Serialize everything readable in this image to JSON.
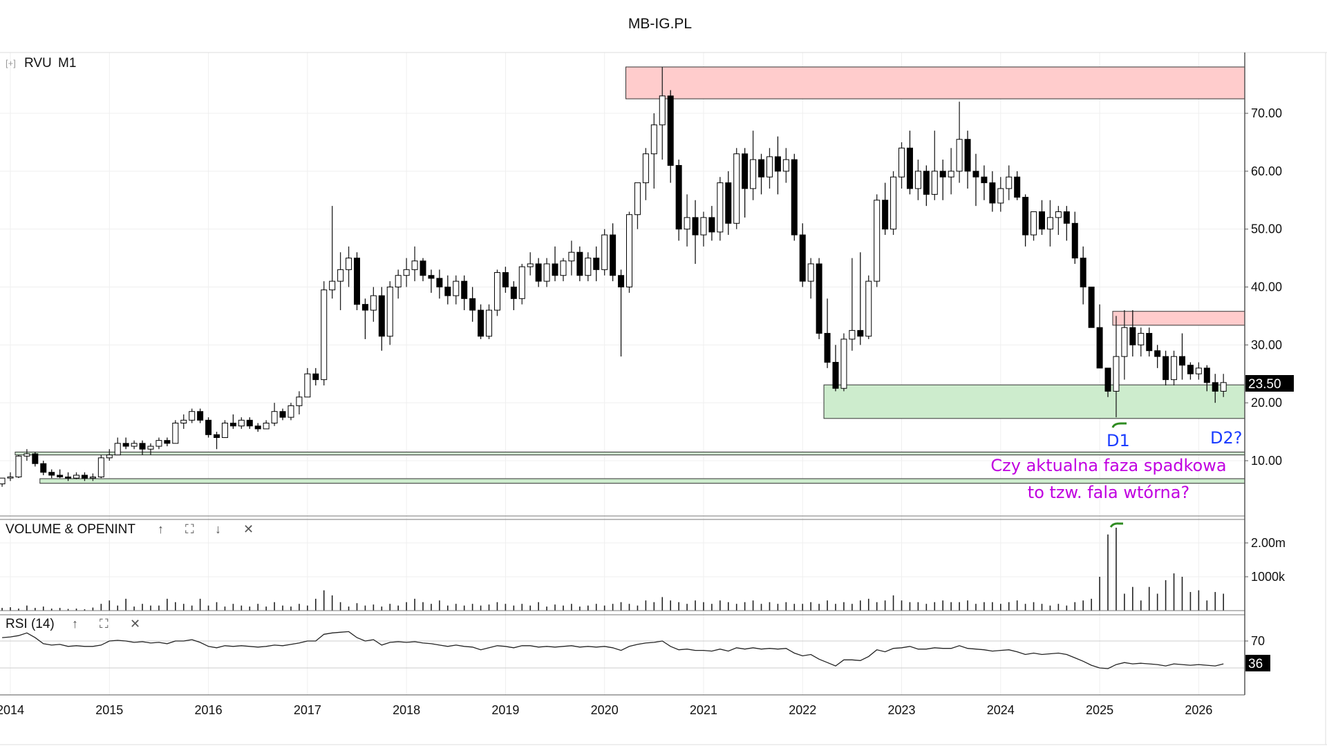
{
  "page_title": "MB-IG.PL",
  "price_panel": {
    "symbol": "RVU",
    "interval": "M1",
    "expand_icon": "[+]",
    "last_price": "23.50"
  },
  "volume_panel": {
    "title": "VOLUME & OPENINT",
    "icons": [
      "arrow-up-icon",
      "maximize-icon",
      "arrow-down-icon",
      "close-icon"
    ]
  },
  "rsi_panel": {
    "title": "RSI (14)",
    "last_value": "36",
    "icons": [
      "arrow-up-icon",
      "maximize-icon",
      "close-icon"
    ]
  },
  "annotations": {
    "d1": "D1",
    "d2": "D2?",
    "question_line1": "Czy aktualna faza spadkowa",
    "question_line2": "to tzw. fala wtórna?"
  },
  "colors": {
    "supply_zone": "#ffcccc",
    "demand_zone": "#cdeccd",
    "annotation_blue": "#1a3cff",
    "annotation_purple": "#c000e0",
    "brush_green": "#2e8b20"
  },
  "chart_data": {
    "type": "candlestick",
    "title": "MB-IG.PL",
    "start_month": "2013-12",
    "x_tick_labels": [
      "2014",
      "2015",
      "2016",
      "2017",
      "2018",
      "2019",
      "2020",
      "2021",
      "2022",
      "2023",
      "2024",
      "2025",
      "2026"
    ],
    "price_ticks": [
      "10.00",
      "20.00",
      "30.00",
      "40.00",
      "50.00",
      "60.00",
      "70.00"
    ],
    "price_tick_values": [
      10,
      20,
      30,
      40,
      50,
      60,
      70
    ],
    "ylim": [
      4,
      80
    ],
    "zones": [
      {
        "type": "supply",
        "from": "2020-04",
        "low": 72.5,
        "high": 78
      },
      {
        "type": "supply",
        "from": "2025-03",
        "low": 33.4,
        "high": 35.8
      },
      {
        "type": "demand",
        "from": "2022-04",
        "low": 17.3,
        "high": 23.1
      },
      {
        "type": "demand",
        "from": "2014-02",
        "low": 11.0,
        "high": 11.5
      },
      {
        "type": "demand",
        "from": "2014-05",
        "low": 6.1,
        "high": 6.9
      }
    ],
    "ohlc": [
      [
        6,
        7,
        5.5,
        7
      ],
      [
        7,
        8,
        6.5,
        7.2
      ],
      [
        7.2,
        11,
        7,
        10.8
      ],
      [
        10.8,
        12,
        10,
        11.2
      ],
      [
        11.2,
        11.5,
        9,
        9.5
      ],
      [
        9.5,
        10,
        7.5,
        8
      ],
      [
        8,
        8.5,
        7,
        7.5
      ],
      [
        7.5,
        8.5,
        7,
        7.2
      ],
      [
        7.2,
        8,
        6.5,
        7
      ],
      [
        7,
        8,
        6.8,
        7.5
      ],
      [
        7.5,
        8,
        6.5,
        7
      ],
      [
        7,
        7.8,
        6.5,
        7.2
      ],
      [
        7.2,
        11,
        7,
        10.5
      ],
      [
        10.5,
        12,
        10,
        11
      ],
      [
        11,
        14,
        11,
        13
      ],
      [
        13,
        14,
        12,
        12.5
      ],
      [
        12.5,
        13.5,
        12,
        13
      ],
      [
        13,
        13.5,
        11,
        12
      ],
      [
        12,
        13,
        11,
        12.5
      ],
      [
        12.5,
        14,
        12,
        13.5
      ],
      [
        13.5,
        14,
        12.5,
        13
      ],
      [
        13,
        17,
        13,
        16.5
      ],
      [
        16.5,
        18,
        15.5,
        17
      ],
      [
        17,
        19,
        16.5,
        18.5
      ],
      [
        18.5,
        19,
        16.5,
        17
      ],
      [
        17,
        17.5,
        14,
        14.5
      ],
      [
        14.5,
        15,
        12,
        14
      ],
      [
        14,
        17,
        14,
        16.5
      ],
      [
        16.5,
        18,
        15.5,
        16
      ],
      [
        16,
        17.5,
        15.5,
        17
      ],
      [
        17,
        17.5,
        15.5,
        16
      ],
      [
        16,
        16.5,
        15,
        15.5
      ],
      [
        15.5,
        17,
        15.5,
        16.5
      ],
      [
        16.5,
        20,
        16,
        18.5
      ],
      [
        18.5,
        19,
        17,
        17.5
      ],
      [
        17.5,
        20,
        17,
        19.5
      ],
      [
        19.5,
        22,
        18,
        21
      ],
      [
        21,
        26,
        21,
        25
      ],
      [
        25,
        26,
        23,
        24
      ],
      [
        24,
        41,
        23,
        39.5
      ],
      [
        39.5,
        54,
        38,
        41
      ],
      [
        41,
        46,
        36,
        43
      ],
      [
        43,
        47,
        40,
        45
      ],
      [
        45,
        46,
        36,
        37
      ],
      [
        37,
        38,
        31,
        36
      ],
      [
        36,
        40,
        34,
        38.5
      ],
      [
        38.5,
        40,
        29,
        31.5
      ],
      [
        31.5,
        41,
        30,
        40
      ],
      [
        40,
        43,
        38,
        42
      ],
      [
        42,
        45,
        40,
        43
      ],
      [
        43,
        47,
        41,
        44.5
      ],
      [
        44.5,
        45,
        41,
        42
      ],
      [
        42,
        43,
        39,
        41.5
      ],
      [
        41.5,
        43,
        38,
        40
      ],
      [
        40,
        42,
        37,
        38.5
      ],
      [
        38.5,
        42,
        37,
        41
      ],
      [
        41,
        42,
        36,
        38
      ],
      [
        38,
        40,
        34,
        36
      ],
      [
        36,
        37,
        31,
        31.5
      ],
      [
        31.5,
        37,
        31,
        36
      ],
      [
        36,
        43,
        35,
        42.5
      ],
      [
        42.5,
        43.5,
        39,
        40
      ],
      [
        40,
        41,
        36,
        38
      ],
      [
        38,
        44,
        37,
        43.5
      ],
      [
        43.5,
        46,
        42,
        44
      ],
      [
        44,
        45,
        40,
        41
      ],
      [
        41,
        45,
        40,
        44
      ],
      [
        44,
        47,
        41,
        42
      ],
      [
        42,
        45,
        41,
        44.5
      ],
      [
        44.5,
        48,
        42,
        46
      ],
      [
        46,
        47,
        41,
        42
      ],
      [
        42,
        46,
        41,
        45
      ],
      [
        45,
        47,
        41,
        43
      ],
      [
        43,
        50,
        42,
        49
      ],
      [
        49,
        51,
        41,
        42
      ],
      [
        42,
        43,
        28,
        40
      ],
      [
        40,
        53,
        39,
        52.5
      ],
      [
        52.5,
        58,
        50,
        58
      ],
      [
        58,
        64,
        55,
        63
      ],
      [
        63,
        70,
        57,
        68
      ],
      [
        68,
        78,
        62,
        73
      ],
      [
        73,
        74,
        58,
        61
      ],
      [
        61,
        62,
        48,
        50
      ],
      [
        50,
        56,
        47,
        52
      ],
      [
        52,
        55,
        44,
        49
      ],
      [
        49,
        53,
        47,
        52
      ],
      [
        52,
        54,
        48,
        49.5
      ],
      [
        49.5,
        59,
        48,
        58
      ],
      [
        58,
        60,
        49,
        51
      ],
      [
        51,
        64,
        50,
        63
      ],
      [
        63,
        64,
        52,
        57
      ],
      [
        57,
        67,
        55,
        62
      ],
      [
        62,
        63,
        56,
        59
      ],
      [
        59,
        64,
        57,
        62.5
      ],
      [
        62.5,
        66,
        56,
        60
      ],
      [
        60,
        64,
        58,
        62
      ],
      [
        62,
        63,
        48,
        49
      ],
      [
        49,
        51,
        40,
        41
      ],
      [
        41,
        45,
        38,
        44
      ],
      [
        44,
        45,
        31,
        32
      ],
      [
        32,
        38,
        26,
        27
      ],
      [
        27,
        30,
        22,
        22.5
      ],
      [
        22.5,
        32,
        22,
        31
      ],
      [
        31,
        45,
        29,
        32.5
      ],
      [
        32.5,
        46,
        30,
        31.5
      ],
      [
        31.5,
        42,
        31,
        41
      ],
      [
        41,
        56,
        40,
        55
      ],
      [
        55,
        58,
        49,
        50
      ],
      [
        50,
        60,
        49,
        59
      ],
      [
        59,
        65,
        57,
        64
      ],
      [
        64,
        67,
        56,
        57
      ],
      [
        57,
        62,
        55,
        60
      ],
      [
        60,
        61,
        54,
        56
      ],
      [
        56,
        67,
        55,
        60
      ],
      [
        60,
        62,
        55,
        59
      ],
      [
        59,
        64,
        56,
        60
      ],
      [
        60,
        72,
        58,
        65.5
      ],
      [
        65.5,
        67,
        57,
        60
      ],
      [
        60,
        63,
        54,
        59
      ],
      [
        59,
        61,
        55,
        58
      ],
      [
        58,
        60,
        53,
        54.5
      ],
      [
        54.5,
        59,
        53,
        57
      ],
      [
        57,
        61,
        55,
        59
      ],
      [
        59,
        60,
        55,
        55.5
      ],
      [
        55.5,
        56,
        47,
        49
      ],
      [
        49,
        53,
        48,
        53
      ],
      [
        53,
        55,
        49,
        50
      ],
      [
        50,
        55,
        47,
        52
      ],
      [
        52,
        54,
        49,
        53
      ],
      [
        53,
        54,
        48,
        51
      ],
      [
        51,
        53,
        44,
        45
      ],
      [
        45,
        47,
        37,
        40
      ],
      [
        40,
        40,
        33,
        33
      ],
      [
        33,
        37,
        26,
        26
      ],
      [
        26,
        26,
        21,
        22
      ],
      [
        22,
        35,
        17.5,
        28
      ],
      [
        28,
        36,
        24,
        33
      ],
      [
        33,
        36,
        28,
        30
      ],
      [
        30,
        33,
        28,
        32
      ],
      [
        32,
        33,
        28,
        29
      ],
      [
        29,
        30,
        26,
        28
      ],
      [
        28,
        29,
        23,
        24
      ],
      [
        24,
        29,
        23,
        28
      ],
      [
        28,
        32,
        24,
        26.5
      ],
      [
        26.5,
        27,
        24,
        25
      ],
      [
        25,
        27,
        24,
        26
      ],
      [
        26,
        26.5,
        22,
        23.5
      ],
      [
        23.5,
        25,
        20,
        22
      ],
      [
        22,
        25,
        21,
        23.5
      ]
    ],
    "volume_ticks": [
      "1000k",
      "2.00m"
    ],
    "volume_tick_values": [
      1000,
      2000
    ],
    "volume_k": [
      80,
      100,
      60,
      150,
      80,
      120,
      60,
      80,
      50,
      60,
      40,
      90,
      200,
      300,
      150,
      350,
      120,
      200,
      150,
      150,
      350,
      250,
      200,
      150,
      350,
      150,
      250,
      120,
      200,
      150,
      120,
      200,
      120,
      250,
      150,
      120,
      200,
      150,
      350,
      600,
      450,
      250,
      120,
      220,
      150,
      180,
      120,
      200,
      150,
      250,
      350,
      250,
      200,
      300,
      150,
      200,
      150,
      200,
      150,
      180,
      250,
      200,
      150,
      200,
      150,
      250,
      120,
      180,
      150,
      200,
      120,
      150,
      200,
      150,
      200,
      250,
      200,
      150,
      300,
      250,
      400,
      300,
      250,
      200,
      300,
      250,
      200,
      300,
      250,
      200,
      250,
      300,
      200,
      250,
      200,
      250,
      200,
      200,
      250,
      200,
      300,
      200,
      250,
      200,
      300,
      350,
      250,
      300,
      450,
      300,
      250,
      250,
      200,
      250,
      300,
      250,
      250,
      300,
      200,
      250,
      250,
      200,
      250,
      300,
      200,
      250,
      200,
      150,
      200,
      150,
      250,
      300,
      350,
      1000,
      2250,
      2450,
      500,
      700,
      300,
      700,
      500,
      900,
      1100,
      1000,
      550,
      600,
      300,
      550,
      500
    ],
    "rsi_ticks": [
      "70"
    ],
    "rsi_tick_values": [
      70
    ],
    "rsi_guides": [
      70,
      30
    ],
    "rsi": [
      75,
      76,
      78,
      82,
      75,
      66,
      64,
      65,
      62,
      63,
      62,
      62,
      64,
      70,
      71,
      70,
      68,
      69,
      67,
      68,
      66,
      70,
      70,
      72,
      68,
      62,
      60,
      63,
      62,
      63,
      62,
      61,
      62,
      64,
      63,
      65,
      67,
      70,
      70,
      80,
      82,
      83,
      84,
      75,
      70,
      72,
      64,
      68,
      69,
      68,
      69,
      67,
      66,
      64,
      62,
      64,
      62,
      61,
      57,
      60,
      63,
      62,
      60,
      63,
      63,
      61,
      62,
      61,
      62,
      63,
      61,
      62,
      61,
      62,
      60,
      56,
      62,
      65,
      67,
      68,
      70,
      62,
      57,
      58,
      56,
      56,
      55,
      58,
      55,
      60,
      58,
      60,
      58,
      59,
      58,
      59,
      52,
      48,
      50,
      43,
      38,
      33,
      42,
      42,
      41,
      47,
      57,
      54,
      59,
      60,
      62,
      58,
      58,
      60,
      59,
      59,
      63,
      59,
      58,
      57,
      55,
      56,
      57,
      54,
      50,
      52,
      50,
      51,
      52,
      50,
      45,
      40,
      34,
      30,
      29,
      35,
      38,
      36,
      37,
      36,
      35,
      33,
      36,
      35,
      34,
      35,
      34,
      33,
      36
    ]
  }
}
